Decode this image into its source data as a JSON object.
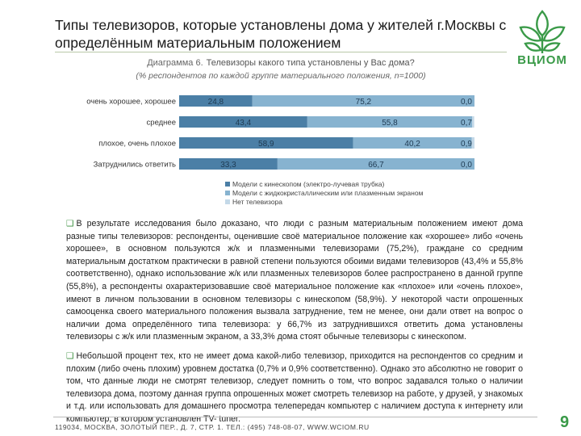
{
  "slide": {
    "title": "Типы телевизоров, которые установлены дома у жителей г.Москвы с определённым материальным положением",
    "logo_text": "ВЦИОМ",
    "footer": "119034, МОСКВА, ЗОЛОТЫЙ ПЕР., Д. 7, СТР. 1. ТЕЛ.: (495) 748-08-07, WWW.WCIOM.RU",
    "page_number": "9"
  },
  "chart_data": {
    "type": "bar",
    "stacked": true,
    "orientation": "horizontal",
    "title_prefix": "Диаграмма 6.",
    "title": "Телевизоры какого типа установлены у Вас дома?",
    "subtitle": "(% респондентов по каждой группе материального положения, n=1000)",
    "categories": [
      "очень хорошее, хорошее",
      "среднее",
      "плохое, очень плохое",
      "Затруднились ответить"
    ],
    "series": [
      {
        "name": "Модели с кинескопом (электро-лучевая трубка)",
        "color": "#4b7fa6",
        "values": [
          24.8,
          43.4,
          58.9,
          33.3
        ]
      },
      {
        "name": "Модели с жидкокристаллическим или плазменным экраном",
        "color": "#87b3d0",
        "values": [
          75.2,
          55.8,
          40.2,
          66.7
        ]
      },
      {
        "name": "Нет телевизора",
        "color": "#c4d9e8",
        "values": [
          0.0,
          0.7,
          0.9,
          0.0
        ]
      }
    ],
    "labels": [
      [
        "24,8",
        "75,2",
        "0,0"
      ],
      [
        "43,4",
        "55,8",
        "0,7"
      ],
      [
        "58,9",
        "40,2",
        "0,9"
      ],
      [
        "33,3",
        "66,7",
        "0,0"
      ]
    ],
    "xlim": [
      0,
      100
    ],
    "legend_position": "bottom"
  },
  "text": {
    "para1": "В результате исследования было доказано, что люди с разным материальным положением имеют дома разные типы телевизоров: респонденты, оценившие своё материальное положение как «хорошее» либо «очень хорошее», в основном пользуются ж/к и плазменными телевизорами (75,2%), граждане со средним материальным достатком практически в равной степени пользуются обоими видами телевизоров (43,4% и 55,8% соответственно), однако использование ж/к или плазменных телевизоров более распространено в данной группе (55,8%), а респонденты охарактеризовавшие своё материальное положение как «плохое» или «очень плохое», имеют в личном пользовании в основном телевизоры с кинескопом (58,9%). У некоторой части опрошенных самооценка своего материального положения вызвала затруднение, тем не менее, они дали ответ на вопрос о наличии дома определённого типа телевизора: у 66,7% из затруднившихся ответить дома установлены телевизоры с ж/к или плазменным экраном, а 33,3% дома стоят обычные телевизоры с кинескопом.",
    "para2": "Небольшой процент тех, кто не имеет дома какой-либо телевизор, приходится на респондентов со средним и плохим (либо очень плохим) уровнем достатка (0,7% и 0,9% соответственно). Однако это абсолютно не говорит о том, что данные люди не смотрят телевизор, следует помнить о том, что вопрос задавался только о наличии телевизора дома, поэтому данная группа опрошенных может смотреть телевизор на работе, у друзей, у знакомых и т.д. или использовать для домашнего просмотра телепередач компьютер с наличием доступа к интернету или компьютер, в котором установлен TV- tuner."
  }
}
